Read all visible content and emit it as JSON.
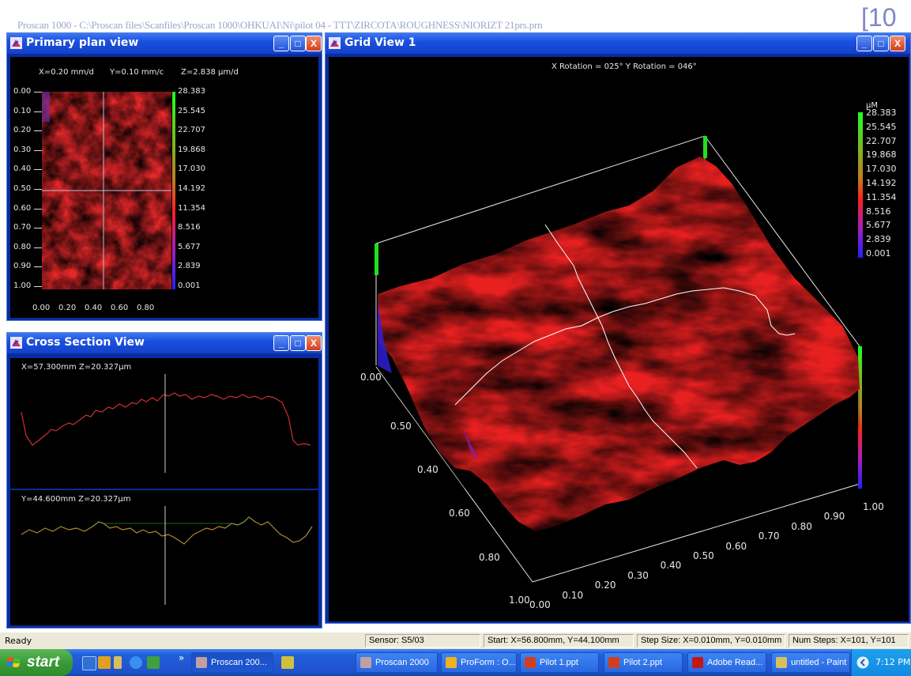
{
  "app_title": "Proscan 1000 - C:\\Proscan files\\Scanfiles\\Proscan 1000\\OHKUAI\\Ni\\pilot 04 - TTT\\ZIRCOTA\\ROUGHNESS\\NIORIZT 21prs.prn",
  "page_number": "[10",
  "windows": {
    "plan": {
      "title": "Primary plan view",
      "readout_x": "X=0.20 mm/d",
      "readout_y": "Y=0.10 mm/c",
      "readout_z": "Z=2.838 µm/d",
      "y_ticks": [
        "0.00",
        "0.10",
        "0.20",
        "0.30",
        "0.40",
        "0.50",
        "0.60",
        "0.70",
        "0.80",
        "0.90",
        "1.00"
      ],
      "x_ticks": [
        "0.00",
        "0.20",
        "0.40",
        "0.60",
        "0.80"
      ],
      "scale": [
        "28.383",
        "25.545",
        "22.707",
        "19.868",
        "17.030",
        "14.192",
        "11.354",
        "8.516",
        "5.677",
        "2.839",
        "0.001"
      ]
    },
    "cross": {
      "title": "Cross Section View",
      "top_readout": "X=57.300mm   Z=20.327µm",
      "bottom_readout": "Y=44.600mm   Z=20.327µm"
    },
    "grid": {
      "title": "Grid View 1",
      "rotation": "X Rotation = 025°     Y Rotation = 046°",
      "unit": "µM",
      "scale": [
        "28.383",
        "25.545",
        "22.707",
        "19.868",
        "17.030",
        "14.192",
        "11.354",
        "8.516",
        "5.677",
        "2.839",
        "0.001"
      ],
      "left_axis": [
        "0.00",
        "0.50",
        "0.40",
        "0.60",
        "0.80",
        "1.00"
      ],
      "front_axis": [
        "0.00",
        "0.10",
        "0.20",
        "0.30",
        "0.40",
        "0.50",
        "0.60",
        "0.70",
        "0.80",
        "0.90"
      ],
      "right_axis_end": "1.00"
    }
  },
  "window_buttons": {
    "minimize": "_",
    "maximize": "□",
    "close": "X"
  },
  "status": {
    "ready": "Ready",
    "sensor": "Sensor: S5/03",
    "start": "Start: X=56.800mm, Y=44.100mm",
    "step": "Step Size: X=0.010mm, Y=0.010mm",
    "steps": "Num Steps: X=101, Y=101"
  },
  "taskbar": {
    "start_label": "start",
    "chevron": "»",
    "tasks": [
      {
        "label": "Proscan 200..."
      },
      {
        "label": "Proscan 2000"
      },
      {
        "label": "ProForm : O..."
      },
      {
        "label": "Pilot 1.ppt"
      },
      {
        "label": "Pilot 2.ppt"
      },
      {
        "label": "Adobe Read..."
      },
      {
        "label": "untitled - Paint"
      }
    ],
    "clock": "7:12 PM"
  }
}
